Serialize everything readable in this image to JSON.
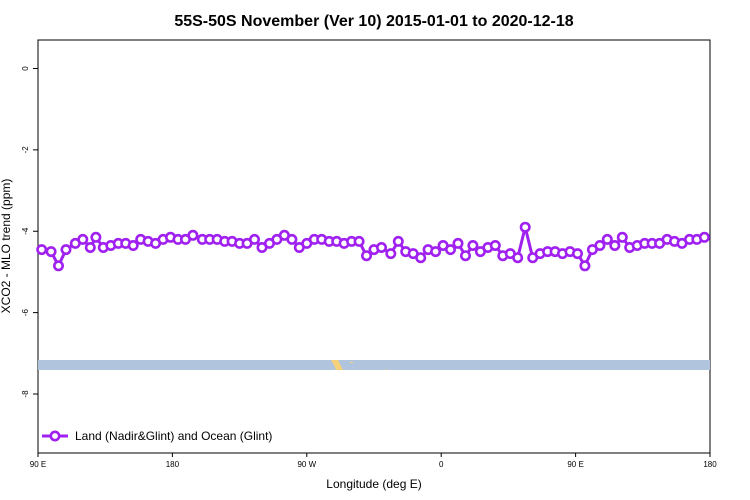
{
  "chart_data": {
    "type": "line",
    "title": "55S-50S November (Ver 10)   2015-01-01 to 2020-12-18",
    "xlabel": "Longitude (deg E)",
    "ylabel": "XCO2 - MLO trend (ppm)",
    "xlim": [
      0,
      360
    ],
    "ylim": [
      -9.45,
      0.7
    ],
    "x_tick_labels": [
      "90 E",
      "180",
      "90 W",
      "0",
      "90 E",
      "180"
    ],
    "y_ticks": [
      0,
      -2,
      -4,
      -6,
      -8
    ],
    "y_tick_labels": [
      "0",
      "-2",
      "-4",
      "-6",
      "-8"
    ],
    "grid": false,
    "legend_position": "bottom-left",
    "series": [
      {
        "name": "Land (Nadir&Glint) and Ocean (Glint)",
        "color": "#a020f0",
        "x": [
          2,
          7,
          11,
          15,
          20,
          24,
          28,
          31,
          35,
          39,
          43,
          47,
          51,
          55,
          59,
          63,
          67,
          71,
          75,
          79,
          83,
          88,
          92,
          96,
          100,
          104,
          108,
          112,
          116,
          120,
          124,
          128,
          132,
          136,
          140,
          144,
          148,
          152,
          156,
          160,
          164,
          168,
          172,
          176,
          180,
          184,
          189,
          193,
          197,
          201,
          205,
          209,
          213,
          217,
          221,
          225,
          229,
          233,
          237,
          241,
          245,
          249,
          253,
          257,
          261,
          265,
          269,
          273,
          277,
          281,
          285,
          289,
          293,
          297,
          301,
          305,
          309,
          313,
          317,
          321,
          325,
          329,
          333,
          337,
          341,
          345,
          349,
          353,
          357
        ],
        "values": [
          -4.45,
          -4.5,
          -4.85,
          -4.45,
          -4.3,
          -4.2,
          -4.4,
          -4.15,
          -4.4,
          -4.35,
          -4.3,
          -4.3,
          -4.35,
          -4.2,
          -4.25,
          -4.3,
          -4.2,
          -4.15,
          -4.2,
          -4.2,
          -4.1,
          -4.2,
          -4.2,
          -4.2,
          -4.25,
          -4.25,
          -4.3,
          -4.3,
          -4.2,
          -4.4,
          -4.3,
          -4.2,
          -4.1,
          -4.2,
          -4.4,
          -4.3,
          -4.2,
          -4.2,
          -4.25,
          -4.25,
          -4.3,
          -4.25,
          -4.25,
          -4.6,
          -4.45,
          -4.4,
          -4.55,
          -4.25,
          -4.5,
          -4.55,
          -4.65,
          -4.45,
          -4.5,
          -4.35,
          -4.45,
          -4.3,
          -4.6,
          -4.35,
          -4.5,
          -4.4,
          -4.35,
          -4.6,
          -4.55,
          -4.65,
          -3.9,
          -4.65,
          -4.55,
          -4.5,
          -4.5,
          -4.55,
          -4.5,
          -4.55,
          -4.85,
          -4.45,
          -4.35,
          -4.2,
          -4.35,
          -4.15,
          -4.4,
          -4.35,
          -4.3,
          -4.3,
          -4.3,
          -4.2,
          -4.25,
          -4.3,
          -4.2,
          -4.2,
          -4.15
        ]
      }
    ]
  }
}
